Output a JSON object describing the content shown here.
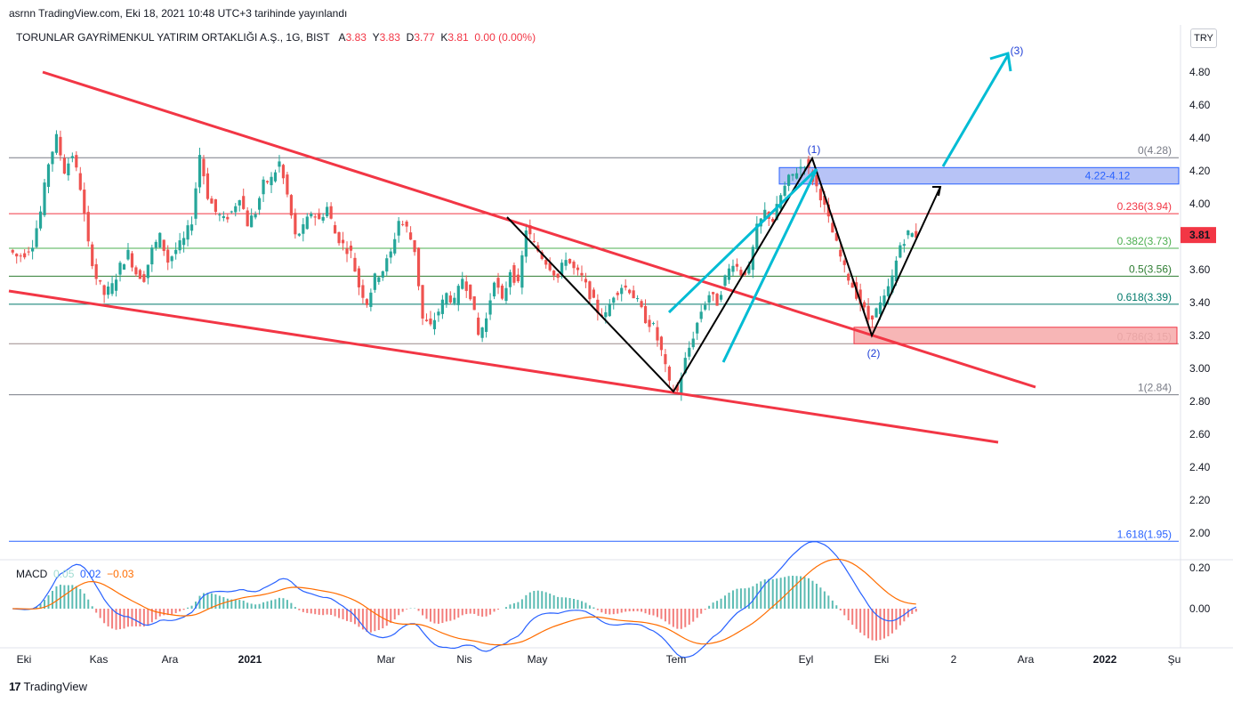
{
  "header": {
    "published": "asrnn TradingView.com, Eki 18, 2021 10:48 UTC+3 tarihinde yayınlandı"
  },
  "symbol": {
    "name": "TORUNLAR GAYRİMENKUL YATIRIM ORTAKLIĞI A.Ş., 1G, BIST",
    "open_label": "A",
    "open": "3.83",
    "high_label": "Y",
    "high": "3.83",
    "low_label": "D",
    "low": "3.77",
    "close_label": "K",
    "close": "3.81",
    "change": "0.00 (0.00%)"
  },
  "currency": "TRY",
  "last_price": "3.81",
  "macd": {
    "label": "MACD",
    "histogram": "0.05",
    "macd": "0.02",
    "signal": "−0.03"
  },
  "footer": {
    "brand": "TradingView",
    "logo": "17"
  },
  "colors": {
    "up": "#26a69a",
    "down": "#ef5350",
    "trend": "#f23645",
    "cyan": "#00bcd4",
    "zone_blue": "#2962ff",
    "zone_red": "#f23645",
    "wave_label": "#1e3ed6"
  },
  "chart_data": {
    "type": "candlestick",
    "y_axis": {
      "ticks": [
        "4.80",
        "4.60",
        "4.40",
        "4.20",
        "4.00",
        "3.80",
        "3.60",
        "3.40",
        "3.20",
        "3.00",
        "2.80",
        "2.60",
        "2.40",
        "2.20",
        "2.00"
      ],
      "range": [
        1.92,
        4.98
      ]
    },
    "x_axis": {
      "ticks": [
        "Eki",
        "Kas",
        "Ara",
        "2021",
        "Mar",
        "Nis",
        "May",
        "Tem",
        "Eyl",
        "Eki",
        "2",
        "Ara",
        "2022",
        "Şu"
      ]
    },
    "macd_axis": {
      "ticks": [
        "0.20",
        "0.00"
      ]
    },
    "fib_levels": [
      {
        "label": "0(4.28)",
        "value": 4.28,
        "color": "#787b86"
      },
      {
        "label": "0.236(3.94)",
        "value": 3.94,
        "color": "#f23645"
      },
      {
        "label": "0.382(3.73)",
        "value": 3.73,
        "color": "#4caf50"
      },
      {
        "label": "0.5(3.56)",
        "value": 3.56,
        "color": "#2e7d32"
      },
      {
        "label": "0.618(3.39)",
        "value": 3.39,
        "color": "#00796b"
      },
      {
        "label": "0.786(3.15)",
        "value": 3.15,
        "color": "#9c8a8a"
      },
      {
        "label": "1(2.84)",
        "value": 2.84,
        "color": "#787b86"
      },
      {
        "label": "1.618(1.95)",
        "value": 1.95,
        "color": "#2962ff"
      }
    ],
    "zones": [
      {
        "label": "4.22-4.12",
        "top": 4.22,
        "bottom": 4.12
      },
      {
        "label": "",
        "top": 3.25,
        "bottom": 3.15
      }
    ],
    "waves": [
      "(1)",
      "(2)",
      "(3)"
    ],
    "price_path": [
      3.72,
      3.68,
      3.7,
      3.76,
      3.95,
      4.25,
      4.4,
      4.2,
      4.3,
      4.1,
      3.75,
      3.55,
      3.45,
      3.5,
      3.62,
      3.7,
      3.58,
      3.55,
      3.72,
      3.8,
      3.65,
      3.72,
      3.78,
      3.9,
      4.3,
      4.05,
      3.95,
      3.9,
      3.95,
      4.05,
      3.88,
      3.95,
      4.12,
      4.15,
      4.25,
      4.05,
      3.8,
      3.85,
      3.95,
      3.9,
      3.98,
      3.82,
      3.75,
      3.7,
      3.5,
      3.4,
      3.55,
      3.6,
      3.7,
      3.9,
      3.85,
      3.72,
      3.3,
      3.25,
      3.35,
      3.45,
      3.4,
      3.55,
      3.45,
      3.2,
      3.3,
      3.55,
      3.4,
      3.6,
      3.5,
      3.85,
      3.75,
      3.68,
      3.62,
      3.55,
      3.68,
      3.6,
      3.55,
      3.45,
      3.35,
      3.32,
      3.45,
      3.5,
      3.48,
      3.4,
      3.3,
      3.25,
      3.1,
      2.9,
      2.86,
      3.05,
      3.2,
      3.35,
      3.45,
      3.4,
      3.55,
      3.65,
      3.58,
      3.6,
      3.85,
      3.95,
      3.9,
      4.05,
      4.15,
      4.2,
      4.25,
      4.15,
      4.05,
      3.9,
      3.75,
      3.6,
      3.5,
      3.4,
      3.3,
      3.35,
      3.42,
      3.55,
      3.75,
      3.82,
      3.81
    ]
  }
}
